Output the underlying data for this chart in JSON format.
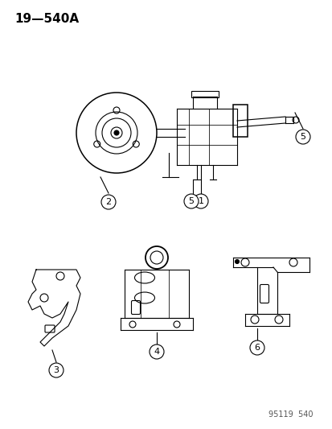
{
  "title_label": "19—540A",
  "footer_label": "95119  540",
  "bg_color": "#ffffff",
  "line_color": "#000000",
  "callout_color": "#000000",
  "title_fontsize": 11,
  "footer_fontsize": 7,
  "callout_fontsize": 8,
  "fig_width": 4.14,
  "fig_height": 5.33,
  "dpi": 100
}
